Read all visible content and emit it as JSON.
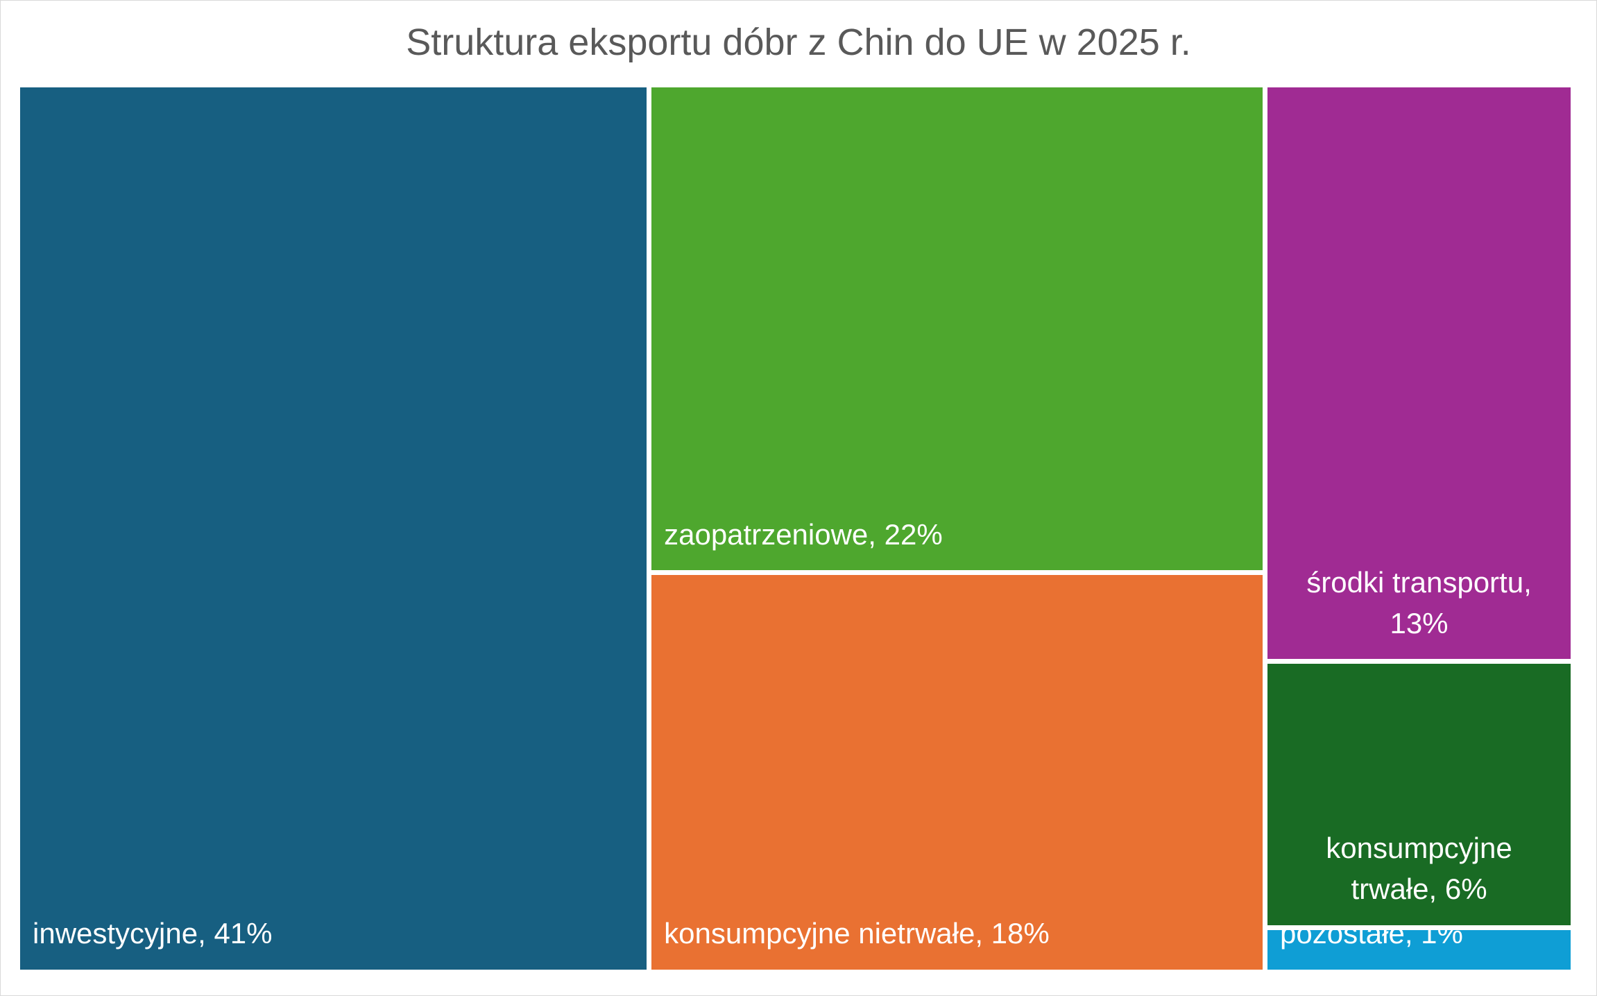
{
  "chart_data": {
    "type": "treemap",
    "title": "Struktura eksportu dóbr z Chin do UE w 2025 r.",
    "categories": [
      "inwestycyjne",
      "zaopatrzeniowe",
      "konsumpcyjne nietrwałe",
      "środki transportu",
      "konsumpcyjne trwałe",
      "pozostałe"
    ],
    "values": [
      41,
      22,
      18,
      13,
      6,
      1
    ],
    "value_labels": [
      "41%",
      "22%",
      "18%",
      "13%",
      "6%",
      "1%"
    ],
    "colors": [
      "#175f81",
      "#4ea72e",
      "#e97132",
      "#a02b93",
      "#196b24",
      "#0f9ed5"
    ]
  }
}
